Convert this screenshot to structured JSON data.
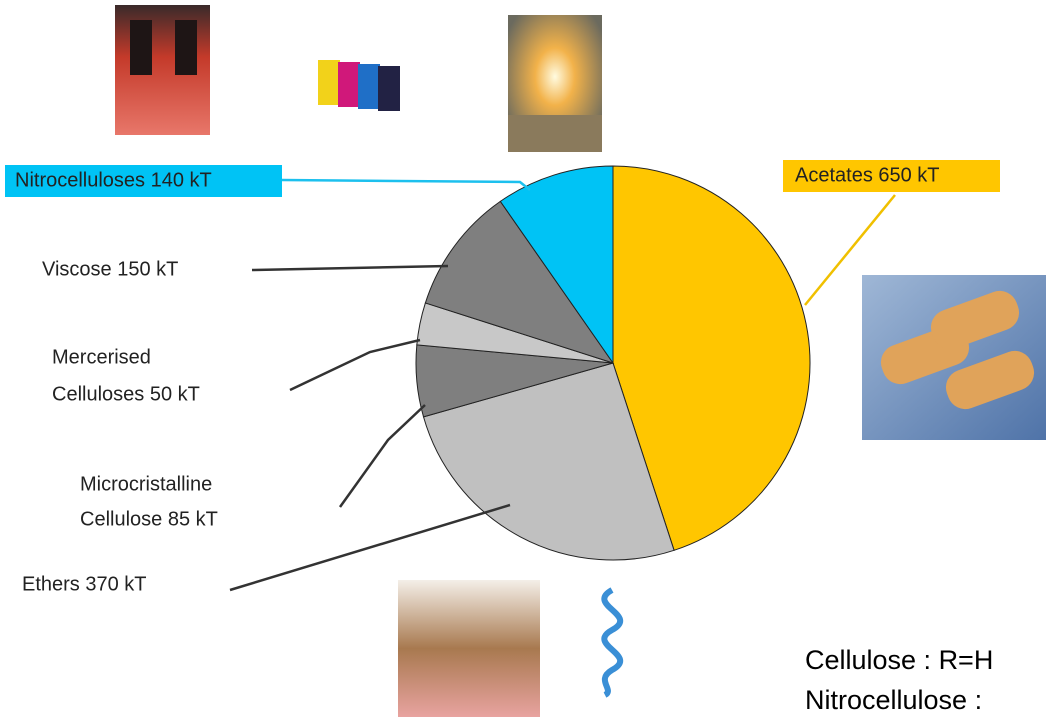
{
  "chart_data": {
    "type": "pie",
    "categories": [
      "Acetates",
      "Ethers",
      "Microcristalline Cellulose",
      "Mercerised Celluloses",
      "Viscose",
      "Nitrocelluloses"
    ],
    "values": [
      650,
      370,
      85,
      50,
      150,
      140
    ],
    "value_labels": [
      [
        "Acetates 650 kT"
      ],
      [
        "Ethers 370 kT"
      ],
      [
        "Microcristalline",
        "Cellulose 85 kT"
      ],
      [
        "Mercerised",
        "Celluloses  50 kT"
      ],
      [
        "Viscose 150 kT"
      ],
      [
        "Nitrocelluloses 140 kT"
      ]
    ],
    "colors": [
      "#ffc600",
      "#c0c0c0",
      "#7f7f7f",
      "#c8c8c8",
      "#7f7f7f",
      "#00c3f5"
    ],
    "annotations": [
      "Cellulose : R=H",
      "Nitrocellulose :"
    ]
  }
}
